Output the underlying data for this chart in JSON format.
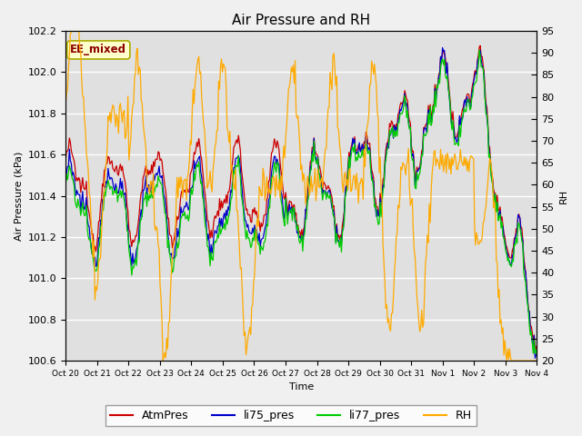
{
  "title": "Air Pressure and RH",
  "xlabel": "Time",
  "ylabel_left": "Air Pressure (kPa)",
  "ylabel_right": "RH",
  "ylim_left": [
    100.6,
    102.2
  ],
  "ylim_right": [
    20,
    95
  ],
  "yticks_left": [
    100.6,
    100.8,
    101.0,
    101.2,
    101.4,
    101.6,
    101.8,
    102.0,
    102.2
  ],
  "yticks_right": [
    20,
    25,
    30,
    35,
    40,
    45,
    50,
    55,
    60,
    65,
    70,
    75,
    80,
    85,
    90,
    95
  ],
  "xtick_labels": [
    "Oct 20",
    "Oct 21",
    "Oct 22",
    "Oct 23",
    "Oct 24",
    "Oct 25",
    "Oct 26",
    "Oct 27",
    "Oct 28",
    "Oct 29",
    "Oct 30",
    "Oct 31",
    "Nov 1",
    "Nov 2",
    "Nov 3",
    "Nov 4"
  ],
  "color_atm": "#cc0000",
  "color_li75": "#0000cc",
  "color_li77": "#00cc00",
  "color_rh": "#ffaa00",
  "label_atm": "AtmPres",
  "label_li75": "li75_pres",
  "label_li77": "li77_pres",
  "label_rh": "RH",
  "annotation_text": "EE_mixed",
  "annotation_color": "#8b0000",
  "annotation_bg": "#ffffcc",
  "background_color": "#e0e0e0",
  "grid_color": "#ffffff",
  "fig_facecolor": "#f0f0f0",
  "title_fontsize": 11,
  "axis_fontsize": 8,
  "tick_fontsize": 8,
  "legend_fontsize": 9,
  "n_points": 500
}
